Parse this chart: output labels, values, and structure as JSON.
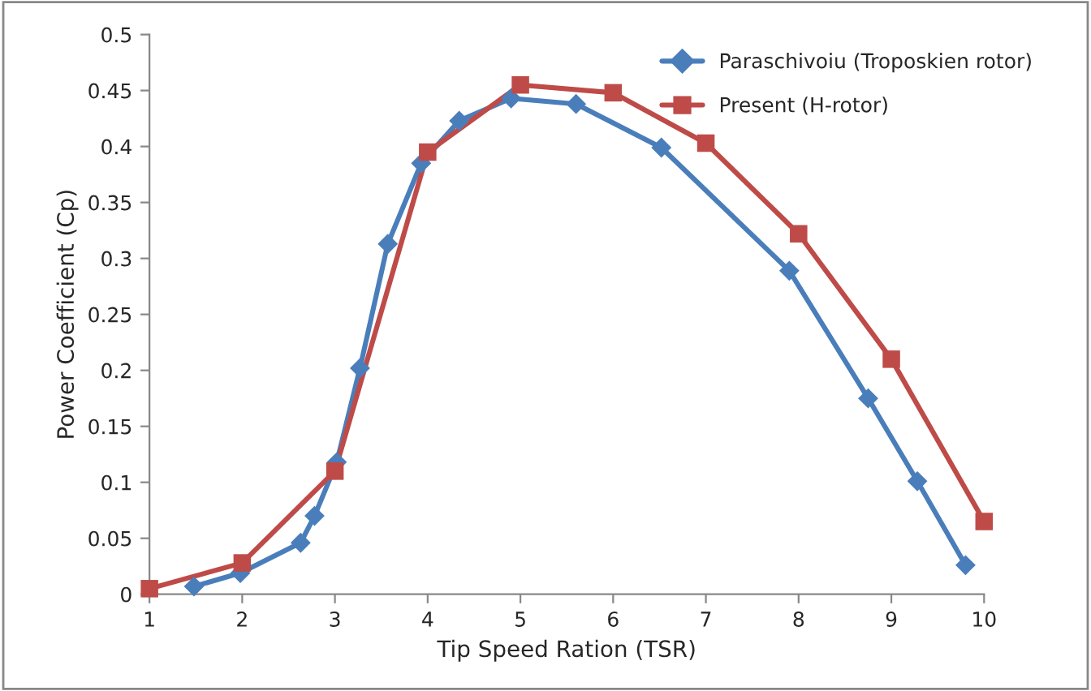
{
  "chart_data": {
    "type": "line",
    "xlabel": "Tip Speed Ration (TSR)",
    "ylabel": "Power Coefficient (Cp)",
    "xlim": [
      1,
      10
    ],
    "xticks": [
      1,
      2,
      3,
      4,
      5,
      6,
      7,
      8,
      9,
      10
    ],
    "ylim": [
      0,
      0.5
    ],
    "yticks": [
      0,
      0.05,
      0.1,
      0.15,
      0.2,
      0.25,
      0.3,
      0.35,
      0.4,
      0.45,
      0.5
    ],
    "grid": false,
    "legend": "top right",
    "series": [
      {
        "name": "Paraschivoiu (Troposkien rotor)",
        "color": "#4a7ebb",
        "marker": "diamond",
        "x": [
          1.48,
          1.98,
          2.63,
          2.78,
          3.02,
          3.27,
          3.57,
          3.93,
          4.34,
          4.9,
          5.6,
          6.52,
          7.9,
          8.75,
          9.28,
          9.8
        ],
        "values": [
          0.007,
          0.019,
          0.046,
          0.07,
          0.118,
          0.202,
          0.313,
          0.385,
          0.423,
          0.443,
          0.438,
          0.399,
          0.289,
          0.175,
          0.101,
          0.026
        ]
      },
      {
        "name": "Present (H-rotor)",
        "color": "#be4b48",
        "marker": "square",
        "x": [
          1,
          2,
          3,
          4,
          5,
          6,
          7,
          8,
          9,
          10
        ],
        "values": [
          0.005,
          0.028,
          0.11,
          0.395,
          0.455,
          0.448,
          0.403,
          0.322,
          0.21,
          0.065
        ]
      }
    ]
  }
}
